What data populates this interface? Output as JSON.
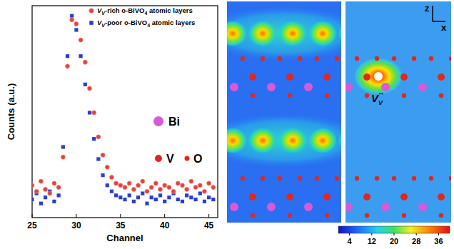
{
  "chart_data": {
    "type": "scatter",
    "x_label": "Channel",
    "y_label": "Counts (a.u.)",
    "xlim": [
      25,
      46
    ],
    "xticks": [
      25,
      30,
      35,
      40,
      45
    ],
    "ylim": [
      0,
      1.05
    ],
    "yticks": [],
    "tick_labels": "x",
    "legend": "upper right",
    "x": [
      25,
      25.5,
      26,
      26.5,
      27,
      27.5,
      28,
      28.5,
      29,
      29.5,
      30,
      30.5,
      31,
      31.5,
      32,
      32.5,
      33,
      33.5,
      34,
      34.5,
      35,
      35.5,
      36,
      36.5,
      37,
      37.5,
      38,
      38.5,
      39,
      39.5,
      40,
      40.5,
      41,
      41.5,
      42,
      42.5,
      43,
      43.5,
      44,
      44.5,
      45,
      45.5
    ],
    "series": [
      {
        "name": "VV-rich o-BiVO4 atomic layers",
        "color": "#e8403a",
        "marker": "circle",
        "values": [
          0.16,
          0.13,
          0.18,
          0.14,
          0.12,
          0.17,
          0.15,
          0.3,
          0.75,
          0.98,
          0.96,
          0.88,
          0.77,
          0.64,
          0.52,
          0.4,
          0.31,
          0.25,
          0.2,
          0.17,
          0.16,
          0.15,
          0.17,
          0.14,
          0.16,
          0.18,
          0.13,
          0.15,
          0.17,
          0.14,
          0.16,
          0.15,
          0.13,
          0.17,
          0.16,
          0.14,
          0.18,
          0.15,
          0.16,
          0.13,
          0.17,
          0.15
        ]
      },
      {
        "name": "VV-poor o-BiVO4 atomic layers",
        "color": "#2a3fd0",
        "marker": "square",
        "values": [
          0.09,
          0.12,
          0.07,
          0.1,
          0.13,
          0.08,
          0.11,
          0.35,
          0.8,
          1.0,
          0.93,
          0.8,
          0.66,
          0.52,
          0.39,
          0.29,
          0.21,
          0.16,
          0.13,
          0.11,
          0.1,
          0.09,
          0.11,
          0.08,
          0.1,
          0.12,
          0.07,
          0.1,
          0.09,
          0.11,
          0.08,
          0.1,
          0.12,
          0.09,
          0.08,
          0.11,
          0.1,
          0.09,
          0.12,
          0.08,
          0.1,
          0.09
        ]
      }
    ]
  },
  "atom_key": [
    {
      "label": "Bi",
      "color": "#d85ad8"
    },
    {
      "label": "V",
      "color": "#e0281e"
    },
    {
      "label": "O",
      "color": "#e0281e"
    }
  ],
  "maps": {
    "vacancy_label": {
      "base": "V",
      "sub": "V",
      "sup": "'''"
    },
    "axes": [
      "z",
      "x"
    ],
    "colorbar": {
      "lim": [
        0,
        40
      ],
      "ticks": [
        4,
        12,
        20,
        28,
        36
      ]
    }
  }
}
